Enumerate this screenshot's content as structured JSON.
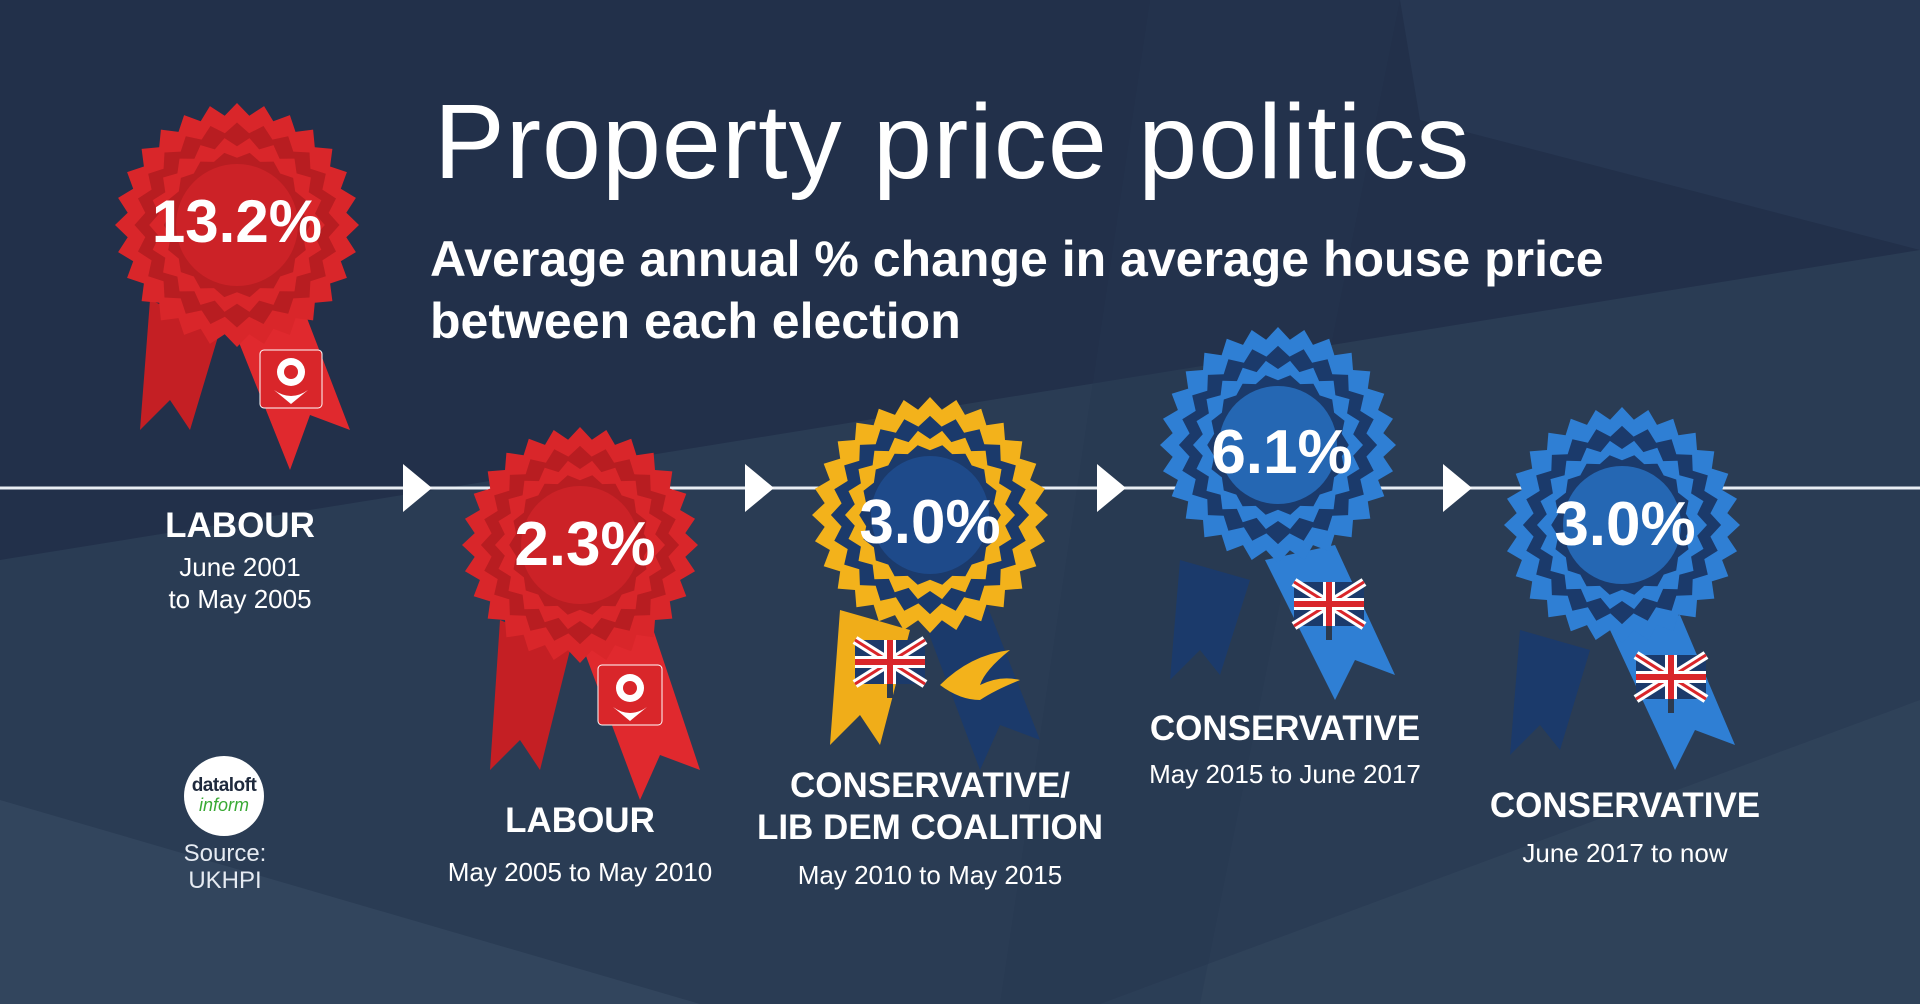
{
  "title": "Property price politics",
  "subtitle_line1": "Average annual % change in average house price",
  "subtitle_line2": "between each election",
  "periods": [
    {
      "value": "13.2%",
      "party": "LABOUR",
      "dates_line1": "June 2001",
      "dates_line2": "to May 2005",
      "rosette": "red",
      "emblem": "rose-icon"
    },
    {
      "value": "2.3%",
      "party": "LABOUR",
      "dates_line1": "May 2005 to May 2010",
      "dates_line2": "",
      "rosette": "red",
      "emblem": "rose-icon"
    },
    {
      "value": "3.0%",
      "party_line1": "CONSERVATIVE/",
      "party_line2": "LIB DEM COALITION",
      "dates_line1": "May 2010 to May 2015",
      "dates_line2": "",
      "rosette": "yellow-blue",
      "emblem": "union-jack-tree-icon, libdem-bird-icon"
    },
    {
      "value": "6.1%",
      "party": "CONSERVATIVE",
      "dates_line1": "May 2015 to June  2017",
      "dates_line2": "",
      "rosette": "blue",
      "emblem": "union-jack-tree-icon"
    },
    {
      "value": "3.0%",
      "party": "CONSERVATIVE",
      "dates_line1": "June  2017 to now",
      "dates_line2": "",
      "rosette": "blue",
      "emblem": "union-jack-tree-icon"
    }
  ],
  "logo": {
    "line1": "dataloft",
    "line2": "inform"
  },
  "source_line1": "Source:",
  "source_line2": "UKHPI",
  "colors": {
    "background": "#22304a",
    "labour_red": "#d9262a",
    "conservative_blue": "#2f7fd4",
    "conservative_navy": "#1b3a6b",
    "libdem_yellow": "#f3b21b"
  }
}
